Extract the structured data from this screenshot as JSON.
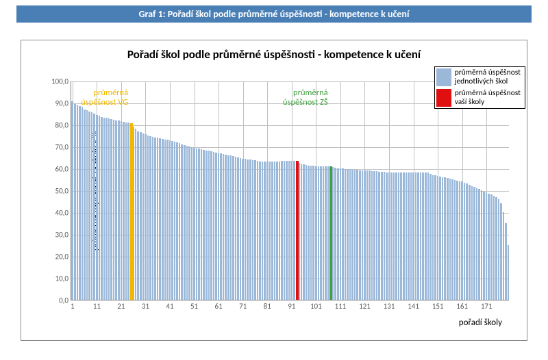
{
  "banner": {
    "text": "Graf 1: Pořadí škol podle průměrné úspěšnosti - kompetence k učení"
  },
  "chart": {
    "type": "bar",
    "title": "Pořadí škol podle průměrné úspěšnosti - kompetence k učení",
    "title_fontsize": 17,
    "ylabel": "průměrná úspěšnost  za školu v %",
    "xlabel": "pořadí  školy",
    "label_fontsize": 13,
    "ylim": [
      0,
      100
    ],
    "ytick_step": 10,
    "ytick_labels": [
      "0,0",
      "10,0",
      "20,0",
      "30,0",
      "40,0",
      "50,0",
      "60,0",
      "70,0",
      "80,0",
      "90,0",
      "100,0"
    ],
    "xtick_start": 1,
    "xtick_step": 10,
    "xmax": 180,
    "background_color": "#ffffff",
    "grid_color": "#c0c0c0",
    "bar_color": "#9bb8d9",
    "highlight_bars": [
      {
        "index": 25,
        "value": 80.5,
        "color": "#f0b800"
      },
      {
        "index": 93,
        "value": 63.5,
        "color": "#e01010"
      },
      {
        "index": 107,
        "value": 61.0,
        "color": "#40a040"
      }
    ],
    "values": [
      90.5,
      89.5,
      89.0,
      88.5,
      88.0,
      87.0,
      86.5,
      86.0,
      85.5,
      85.0,
      84.5,
      84.0,
      83.5,
      83.2,
      83.0,
      82.8,
      82.5,
      82.2,
      82.0,
      81.8,
      81.5,
      81.2,
      81.0,
      80.8,
      80.5,
      79.0,
      78.0,
      77.0,
      76.5,
      76.0,
      75.5,
      75.0,
      74.8,
      74.5,
      74.2,
      74.0,
      73.8,
      73.5,
      73.2,
      73.0,
      72.8,
      72.5,
      72.2,
      72.0,
      71.5,
      71.0,
      70.5,
      70.2,
      70.0,
      69.8,
      69.5,
      69.2,
      69.0,
      68.8,
      68.5,
      68.2,
      68.0,
      67.8,
      67.5,
      67.2,
      67.0,
      66.8,
      66.5,
      66.2,
      66.0,
      65.8,
      65.5,
      65.2,
      65.0,
      64.8,
      64.5,
      64.3,
      64.1,
      64.0,
      63.8,
      63.6,
      63.4,
      63.2,
      63.0,
      63.0,
      63.0,
      63.0,
      63.0,
      63.0,
      63.0,
      63.0,
      63.5,
      63.5,
      63.5,
      63.5,
      63.5,
      63.5,
      63.5,
      62.5,
      62.0,
      61.8,
      61.5,
      61.3,
      61.2,
      61.1,
      61.0,
      61.0,
      61.0,
      61.0,
      61.0,
      61.0,
      61.0,
      60.5,
      60.3,
      60.1,
      60.0,
      60.0,
      59.8,
      59.7,
      59.6,
      59.5,
      59.4,
      59.3,
      59.2,
      59.1,
      59.0,
      59.0,
      59.0,
      58.8,
      58.7,
      58.6,
      58.5,
      58.4,
      58.3,
      58.2,
      58.1,
      58.0,
      58.0,
      58.0,
      58.0,
      58.0,
      58.0,
      58.0,
      58.0,
      58.0,
      58.0,
      58.0,
      58.0,
      58.0,
      58.0,
      58.0,
      58.0,
      57.5,
      57.0,
      56.8,
      56.5,
      56.2,
      56.0,
      55.8,
      55.5,
      55.2,
      55.0,
      54.8,
      54.5,
      54.2,
      54.0,
      53.5,
      53.0,
      52.5,
      52.0,
      51.5,
      51.0,
      50.5,
      50.0,
      49.5,
      49.0,
      48.5,
      48.0,
      47.5,
      47.0,
      46.0,
      44.0,
      40.0,
      35.0,
      25.0
    ],
    "callouts": {
      "vg": {
        "text": "průměrná\núspěšnost VG",
        "color": "#f0b800",
        "x_index": 25
      },
      "zs": {
        "text": "průměrná\núspěšnost ZŠ",
        "color": "#40a040",
        "x_index": 107
      }
    },
    "legend": {
      "items": [
        {
          "label": "průměrná úspěšnost\njednotlivých škol",
          "color": "#9bb8d9"
        },
        {
          "label": "průměrná úspěšnost\nvaší školy",
          "color": "#e01010"
        }
      ]
    }
  }
}
